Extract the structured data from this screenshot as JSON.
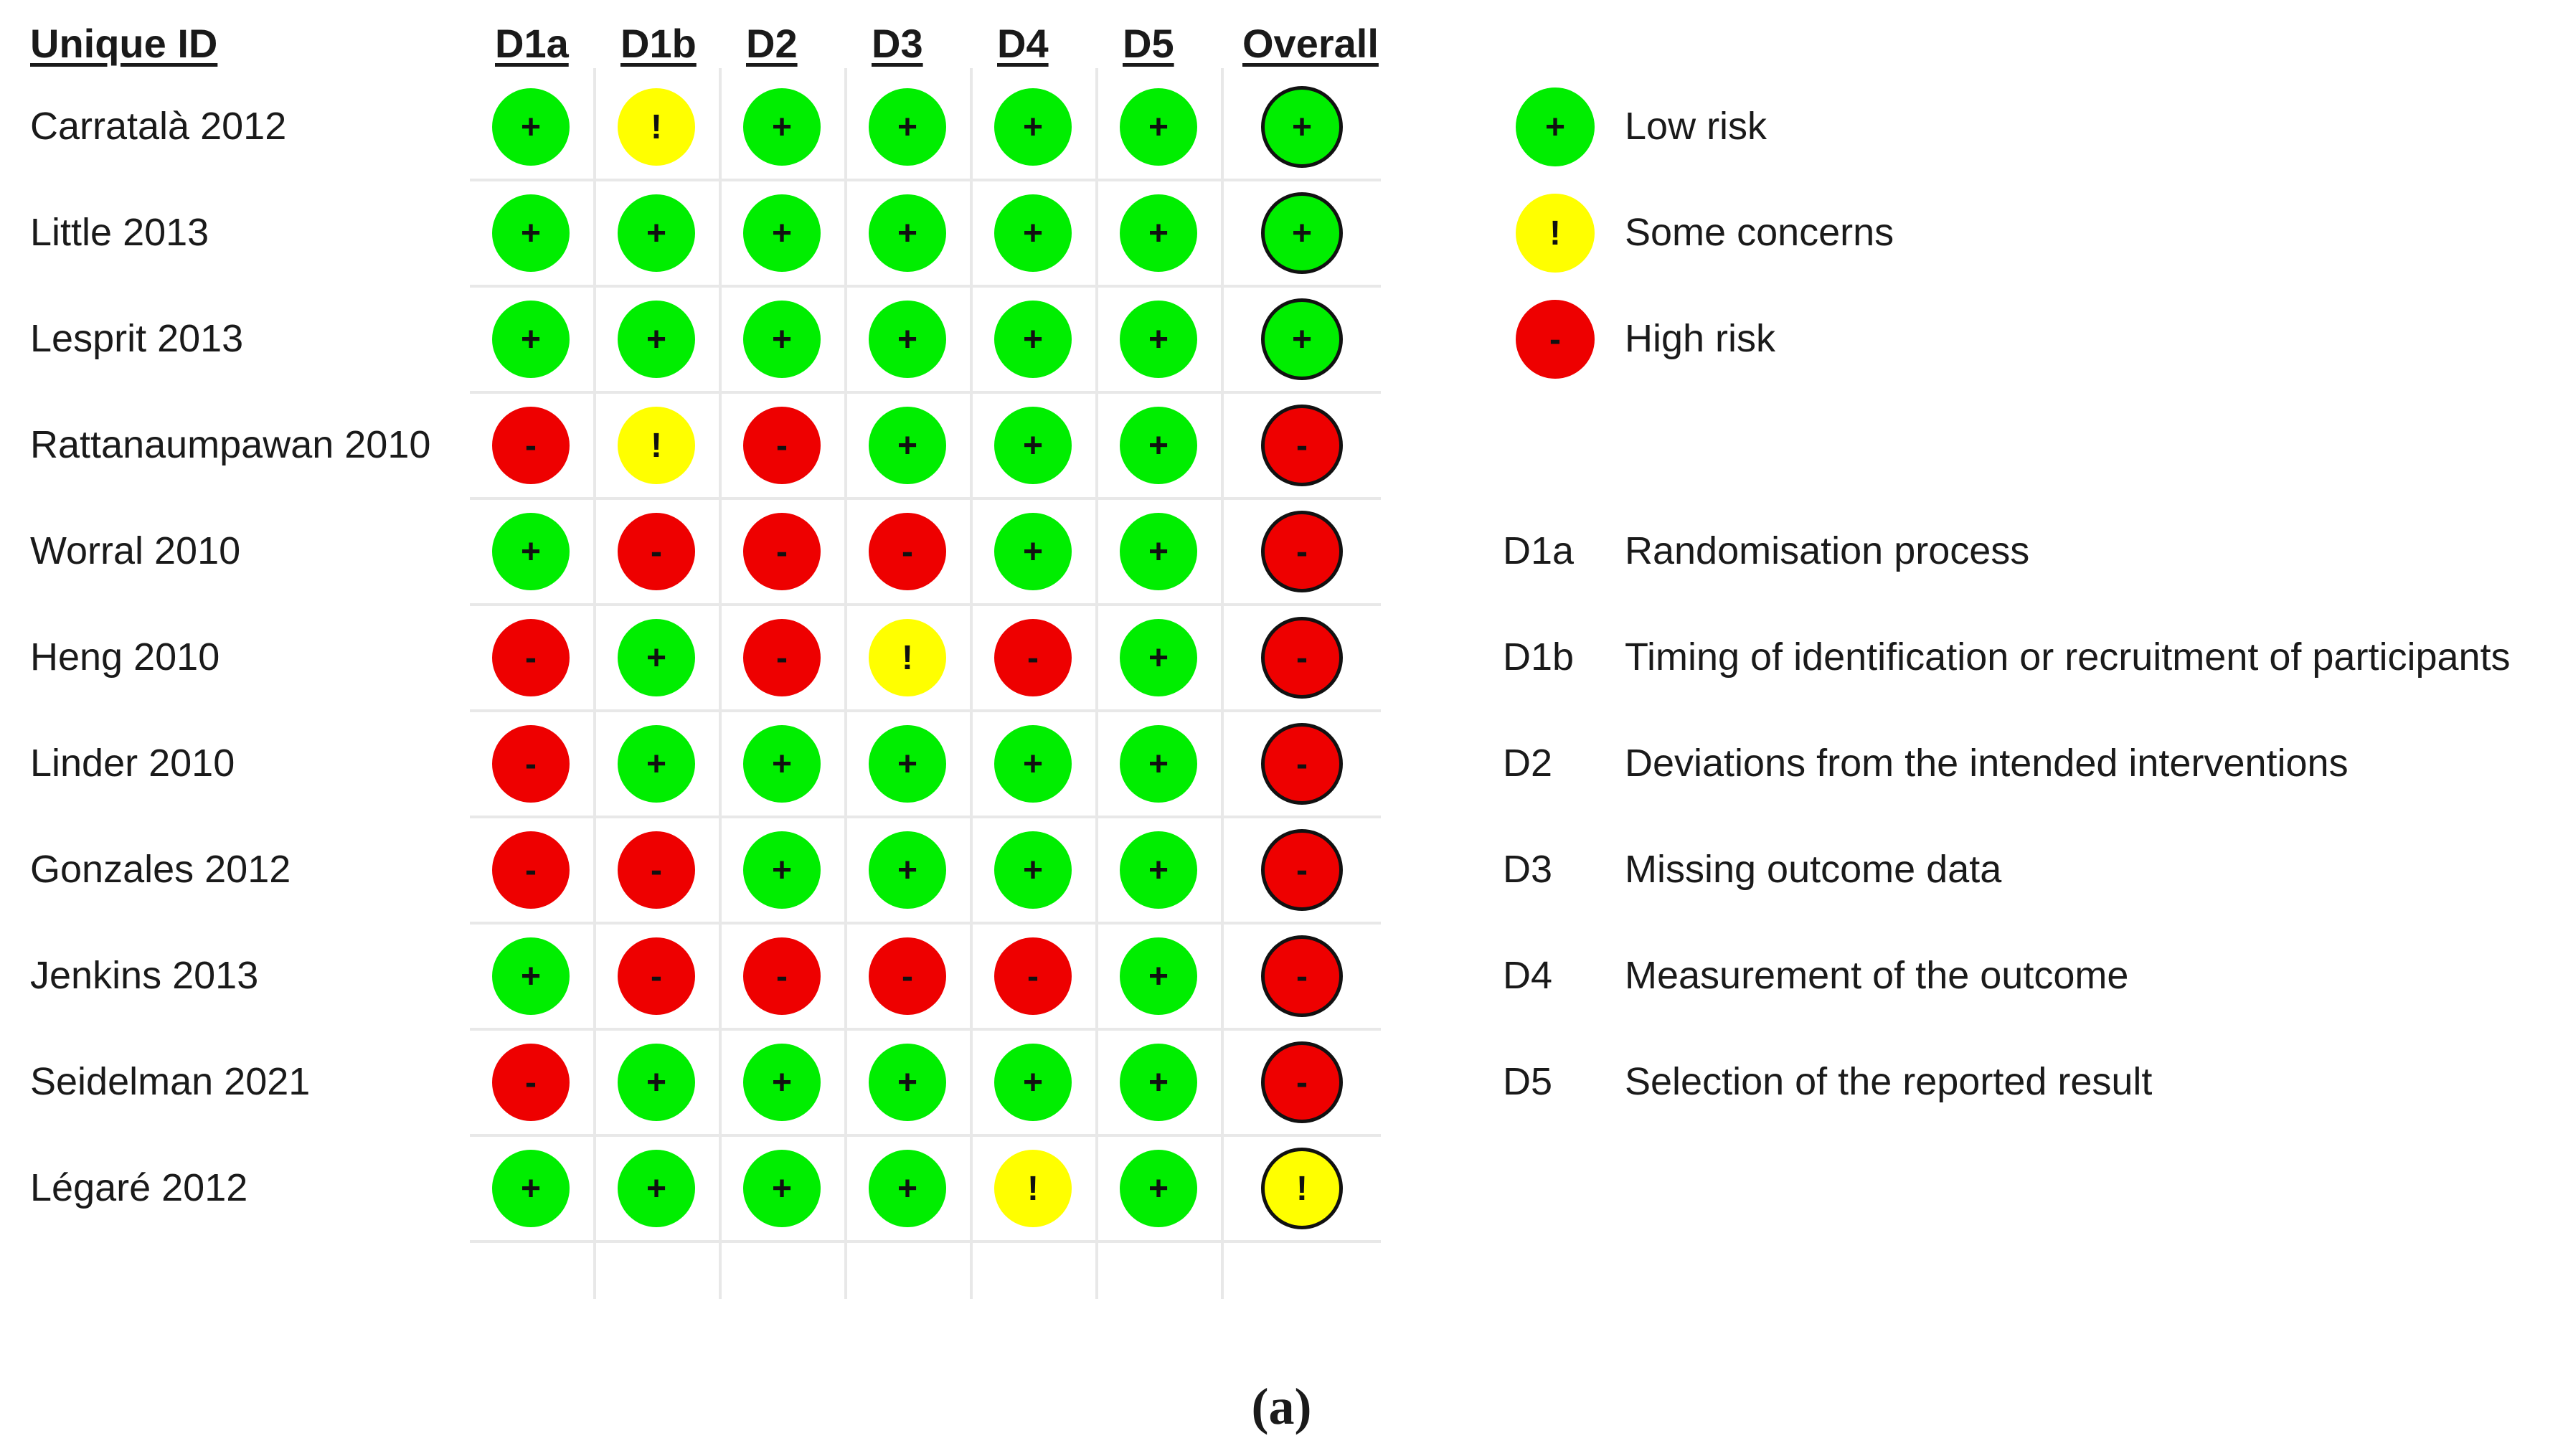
{
  "header": {
    "unique_id": "Unique ID",
    "domains": [
      "D1a",
      "D1b",
      "D2",
      "D3",
      "D4",
      "D5"
    ],
    "overall": "Overall"
  },
  "studies": [
    {
      "id": "Carratalà 2012",
      "d": [
        "low",
        "some",
        "low",
        "low",
        "low",
        "low"
      ],
      "overall": "low"
    },
    {
      "id": "Little 2013",
      "d": [
        "low",
        "low",
        "low",
        "low",
        "low",
        "low"
      ],
      "overall": "low"
    },
    {
      "id": "Lesprit 2013",
      "d": [
        "low",
        "low",
        "low",
        "low",
        "low",
        "low"
      ],
      "overall": "low"
    },
    {
      "id": "Rattanaumpawan 2010",
      "d": [
        "high",
        "some",
        "high",
        "low",
        "low",
        "low"
      ],
      "overall": "high"
    },
    {
      "id": "Worral 2010",
      "d": [
        "low",
        "high",
        "high",
        "high",
        "low",
        "low"
      ],
      "overall": "high"
    },
    {
      "id": "Heng 2010",
      "d": [
        "high",
        "low",
        "high",
        "some",
        "high",
        "low"
      ],
      "overall": "high"
    },
    {
      "id": "Linder 2010",
      "d": [
        "high",
        "low",
        "low",
        "low",
        "low",
        "low"
      ],
      "overall": "high"
    },
    {
      "id": "Gonzales 2012",
      "d": [
        "high",
        "high",
        "low",
        "low",
        "low",
        "low"
      ],
      "overall": "high"
    },
    {
      "id": "Jenkins 2013",
      "d": [
        "low",
        "high",
        "high",
        "high",
        "high",
        "low"
      ],
      "overall": "high"
    },
    {
      "id": "Seidelman 2021",
      "d": [
        "high",
        "low",
        "low",
        "low",
        "low",
        "low"
      ],
      "overall": "high"
    },
    {
      "id": "Légaré 2012",
      "d": [
        "low",
        "low",
        "low",
        "low",
        "some",
        "low"
      ],
      "overall": "some"
    }
  ],
  "symbols": {
    "low": "+",
    "some": "!",
    "high": "-"
  },
  "colors": {
    "low": "#00ee00",
    "some": "#ffff00",
    "high": "#ee0000"
  },
  "legend": [
    {
      "key": "low",
      "label": "Low risk"
    },
    {
      "key": "some",
      "label": "Some concerns"
    },
    {
      "key": "high",
      "label": "High risk"
    }
  ],
  "domain_definitions": [
    {
      "code": "D1a",
      "text": "Randomisation process"
    },
    {
      "code": "D1b",
      "text": "Timing of identification or recruitment of participants"
    },
    {
      "code": "D2",
      "text": "Deviations from the intended interventions"
    },
    {
      "code": "D3",
      "text": "Missing outcome data"
    },
    {
      "code": "D4",
      "text": "Measurement of the outcome"
    },
    {
      "code": "D5",
      "text": "Selection of the reported result"
    }
  ],
  "caption": "(a)"
}
